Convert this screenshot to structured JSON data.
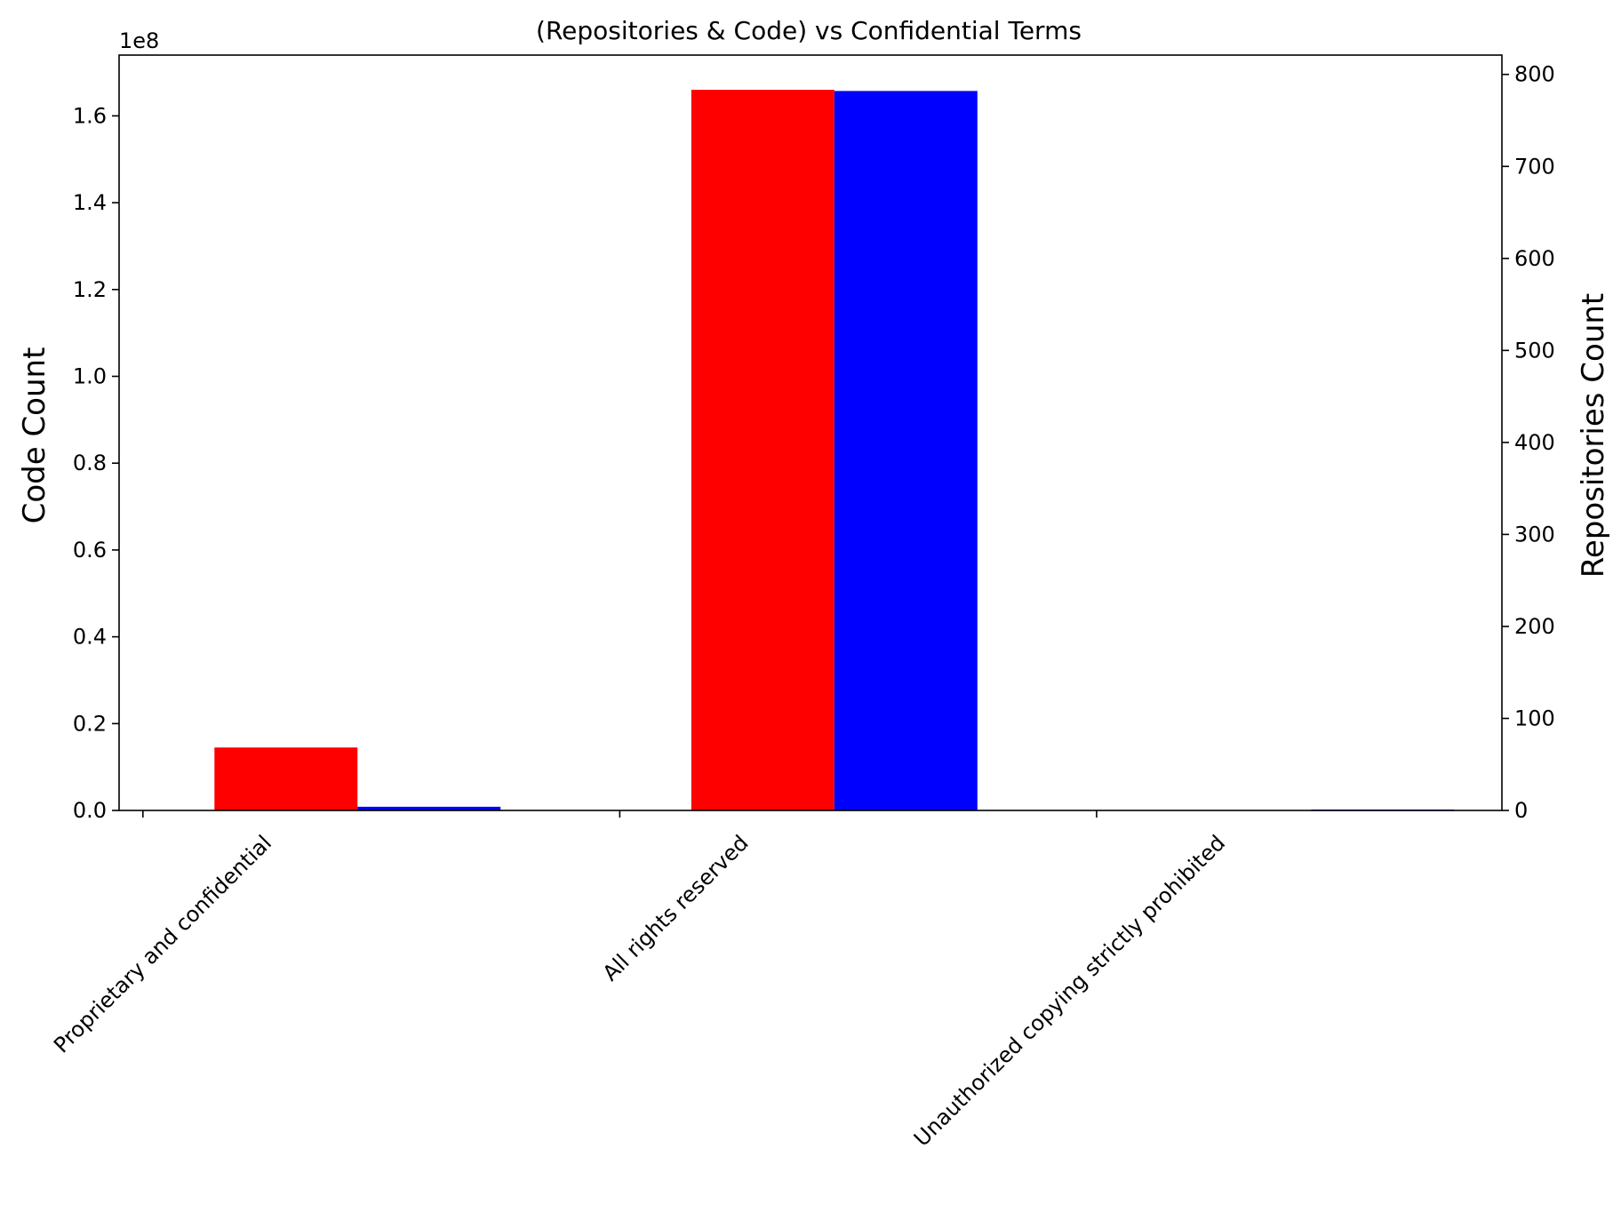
{
  "chart_data": {
    "type": "bar",
    "title": "(Repositories & Code) vs Confidential Terms",
    "categories": [
      "Proprietary and confidential",
      "All rights reserved",
      "Unauthorized copying strictly prohibited"
    ],
    "series": [
      {
        "name": "Code Count",
        "axis": "left",
        "color": "#ff0000",
        "values": [
          14500000,
          166000000,
          50000
        ]
      },
      {
        "name": "Repositories Count",
        "axis": "right",
        "color": "#0000ff",
        "values": [
          4,
          782,
          1
        ]
      }
    ],
    "left_axis": {
      "label": "Code Count",
      "label_color": "#ff0000",
      "offset_text": "1e8",
      "ylim": [
        0,
        174000000
      ],
      "ticks": [
        0,
        20000000,
        40000000,
        60000000,
        80000000,
        100000000,
        120000000,
        140000000,
        160000000
      ],
      "tick_labels": [
        "0.0",
        "0.2",
        "0.4",
        "0.6",
        "0.8",
        "1.0",
        "1.2",
        "1.4",
        "1.6"
      ]
    },
    "right_axis": {
      "label": "Repositories Count",
      "label_color": "#0000ff",
      "ylim": [
        0,
        821
      ],
      "ticks": [
        0,
        100,
        200,
        300,
        400,
        500,
        600,
        700,
        800
      ],
      "tick_labels": [
        "0",
        "100",
        "200",
        "300",
        "400",
        "500",
        "600",
        "700",
        "800"
      ]
    },
    "grid": false,
    "legend": "none"
  }
}
